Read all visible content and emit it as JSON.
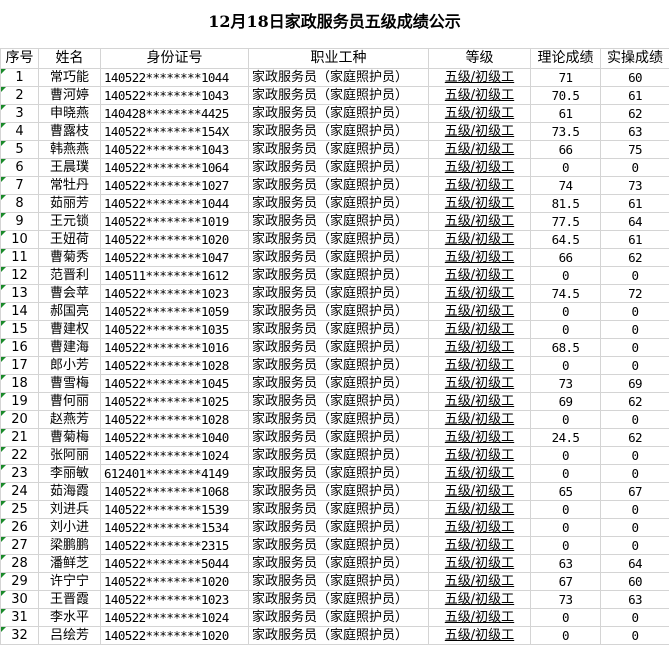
{
  "title": "12月18日家政服务员五级成绩公示",
  "headers": [
    "序号",
    "姓名",
    "身份证号",
    "职业工种",
    "等级",
    "理论成绩",
    "实操成绩"
  ],
  "rows": [
    [
      "1",
      "常巧能",
      "140522********1044",
      "家政服务员（家庭照护员）",
      "五级/初级工",
      "71",
      "60"
    ],
    [
      "2",
      "曹河婷",
      "140522********1043",
      "家政服务员（家庭照护员）",
      "五级/初级工",
      "70.5",
      "61"
    ],
    [
      "3",
      "申晓燕",
      "140428********4425",
      "家政服务员（家庭照护员）",
      "五级/初级工",
      "61",
      "62"
    ],
    [
      "4",
      "曹露枝",
      "140522********154X",
      "家政服务员（家庭照护员）",
      "五级/初级工",
      "73.5",
      "63"
    ],
    [
      "5",
      "韩燕燕",
      "140522********1043",
      "家政服务员（家庭照护员）",
      "五级/初级工",
      "66",
      "75"
    ],
    [
      "6",
      "王晨璞",
      "140522********1064",
      "家政服务员（家庭照护员）",
      "五级/初级工",
      "0",
      "0"
    ],
    [
      "7",
      "常牡丹",
      "140522********1027",
      "家政服务员（家庭照护员）",
      "五级/初级工",
      "74",
      "73"
    ],
    [
      "8",
      "茹丽芳",
      "140522********1044",
      "家政服务员（家庭照护员）",
      "五级/初级工",
      "81.5",
      "61"
    ],
    [
      "9",
      "王元锁",
      "140522********1019",
      "家政服务员（家庭照护员）",
      "五级/初级工",
      "77.5",
      "64"
    ],
    [
      "10",
      "王妞荷",
      "140522********1020",
      "家政服务员（家庭照护员）",
      "五级/初级工",
      "64.5",
      "61"
    ],
    [
      "11",
      "曹菊秀",
      "140522********1047",
      "家政服务员（家庭照护员）",
      "五级/初级工",
      "66",
      "62"
    ],
    [
      "12",
      "范晋利",
      "140511********1612",
      "家政服务员（家庭照护员）",
      "五级/初级工",
      "0",
      "0"
    ],
    [
      "13",
      "曹会苹",
      "140522********1023",
      "家政服务员（家庭照护员）",
      "五级/初级工",
      "74.5",
      "72"
    ],
    [
      "14",
      "郝国亮",
      "140522********1059",
      "家政服务员（家庭照护员）",
      "五级/初级工",
      "0",
      "0"
    ],
    [
      "15",
      "曹建权",
      "140522********1035",
      "家政服务员（家庭照护员）",
      "五级/初级工",
      "0",
      "0"
    ],
    [
      "16",
      "曹建海",
      "140522********1016",
      "家政服务员（家庭照护员）",
      "五级/初级工",
      "68.5",
      "0"
    ],
    [
      "17",
      "郎小芳",
      "140522********1028",
      "家政服务员（家庭照护员）",
      "五级/初级工",
      "0",
      "0"
    ],
    [
      "18",
      "曹雪梅",
      "140522********1045",
      "家政服务员（家庭照护员）",
      "五级/初级工",
      "73",
      "69"
    ],
    [
      "19",
      "曹何丽",
      "140522********1025",
      "家政服务员（家庭照护员）",
      "五级/初级工",
      "69",
      "62"
    ],
    [
      "20",
      "赵燕芳",
      "140522********1028",
      "家政服务员（家庭照护员）",
      "五级/初级工",
      "0",
      "0"
    ],
    [
      "21",
      "曹菊梅",
      "140522********1040",
      "家政服务员（家庭照护员）",
      "五级/初级工",
      "24.5",
      "62"
    ],
    [
      "22",
      "张阿丽",
      "140522********1024",
      "家政服务员（家庭照护员）",
      "五级/初级工",
      "0",
      "0"
    ],
    [
      "23",
      "李丽敏",
      "612401********4149",
      "家政服务员（家庭照护员）",
      "五级/初级工",
      "0",
      "0"
    ],
    [
      "24",
      "茹海霞",
      "140522********1068",
      "家政服务员（家庭照护员）",
      "五级/初级工",
      "65",
      "67"
    ],
    [
      "25",
      "刘进兵",
      "140522********1539",
      "家政服务员（家庭照护员）",
      "五级/初级工",
      "0",
      "0"
    ],
    [
      "26",
      "刘小进",
      "140522********1534",
      "家政服务员（家庭照护员）",
      "五级/初级工",
      "0",
      "0"
    ],
    [
      "27",
      "梁鹏鹏",
      "140522********2315",
      "家政服务员（家庭照护员）",
      "五级/初级工",
      "0",
      "0"
    ],
    [
      "28",
      "潘鲜芝",
      "140522********5044",
      "家政服务员（家庭照护员）",
      "五级/初级工",
      "63",
      "64"
    ],
    [
      "29",
      "许宁宁",
      "140522********1020",
      "家政服务员（家庭照护员）",
      "五级/初级工",
      "67",
      "60"
    ],
    [
      "30",
      "王晋霞",
      "140522********1023",
      "家政服务员（家庭照护员）",
      "五级/初级工",
      "73",
      "63"
    ],
    [
      "31",
      "李水平",
      "140522********1024",
      "家政服务员（家庭照护员）",
      "五级/初级工",
      "0",
      "0"
    ],
    [
      "32",
      "吕绘芳",
      "140522********1020",
      "家政服务员（家庭照护员）",
      "五级/初级工",
      "0",
      "0"
    ]
  ]
}
